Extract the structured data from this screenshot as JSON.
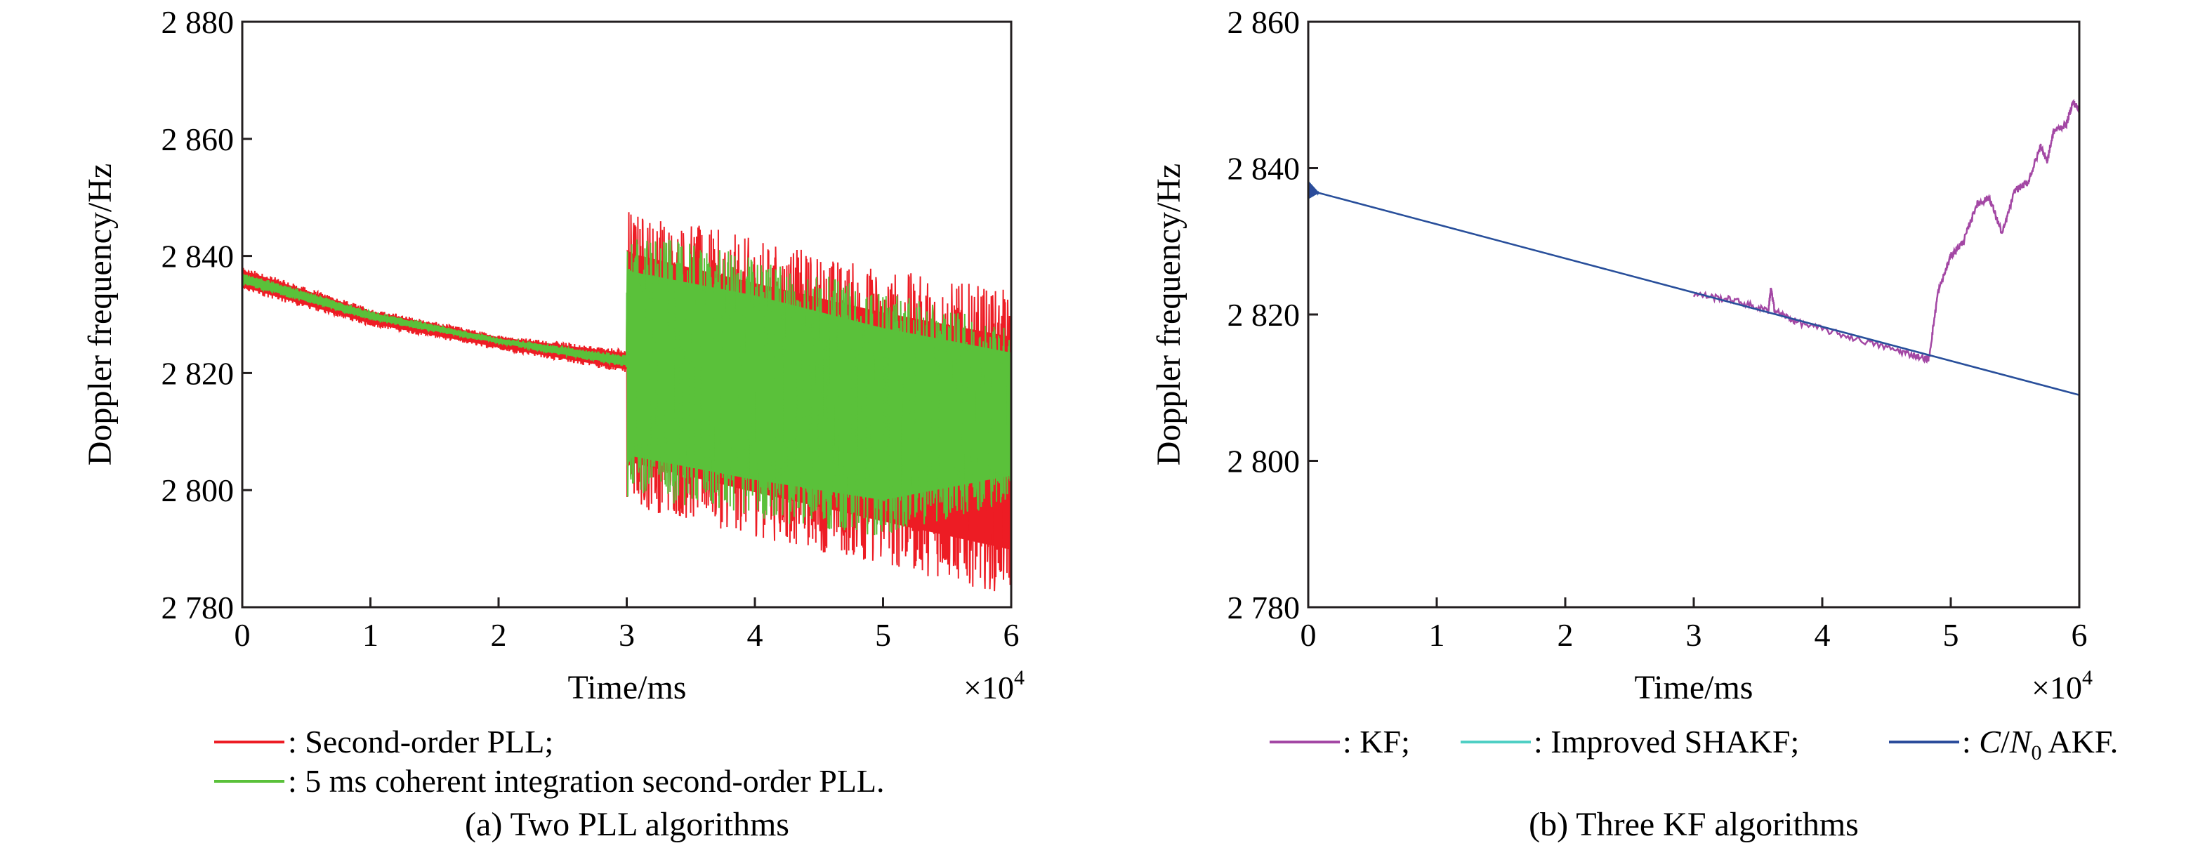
{
  "figure": {
    "panels": [
      {
        "caption": "(a) Two PLL algorithms",
        "xlabel": "Time/ms",
        "ylabel": "Doppler frequency/Hz",
        "x_multiplier": "×10",
        "x_multiplier_exp": "4",
        "legend": [
          {
            "label": ": Second-order PLL;",
            "color": "#ed1c24"
          },
          {
            "label": ": 5 ms coherent integration second-order PLL.",
            "color": "#5ac13a"
          }
        ]
      },
      {
        "caption": "(b) Three KF algorithms",
        "xlabel": "Time/ms",
        "ylabel": "Doppler frequency/Hz",
        "x_multiplier": "×10",
        "x_multiplier_exp": "4",
        "legend": [
          {
            "label": ": KF;",
            "color": "#a347a4"
          },
          {
            "label": ": Improved SHAKF;",
            "color": "#4fcfc4"
          },
          {
            "label_pre": ": ",
            "label_C": "C",
            "label_slash": "/",
            "label_N": "N",
            "label_sub": "0",
            "label_post": " AKF.",
            "color": "#2b4c9b"
          }
        ]
      }
    ]
  },
  "chart_data": [
    {
      "type": "line",
      "title": "",
      "xlabel": "Time/ms",
      "ylabel": "Doppler frequency/Hz",
      "xlim": [
        0,
        60000
      ],
      "ylim": [
        2780,
        2880
      ],
      "xticks": [
        0,
        10000,
        20000,
        30000,
        40000,
        50000,
        60000
      ],
      "xtick_labels": [
        "0",
        "1",
        "2",
        "3",
        "4",
        "5",
        "6"
      ],
      "yticks": [
        2780,
        2800,
        2820,
        2840,
        2860,
        2880
      ],
      "ytick_labels": [
        "2 780",
        "2 800",
        "2 820",
        "2 840",
        "2 860",
        "2 880"
      ],
      "grid": false,
      "legend_position": "below",
      "series": [
        {
          "name": "Second-order PLL",
          "color": "#ed1c24",
          "x": [
            0,
            1000,
            10000,
            20000,
            29999,
            30000,
            30500,
            40000,
            50000,
            60000
          ],
          "upper": [
            2838,
            2837.5,
            2831,
            2826.5,
            2824,
            2849,
            2848,
            2843,
            2838,
            2834
          ],
          "lower": [
            2834,
            2833.5,
            2828,
            2824,
            2820,
            2796,
            2797,
            2792,
            2787,
            2782
          ]
        },
        {
          "name": "5 ms coherent integration second-order PLL",
          "color": "#5ac13a",
          "x": [
            0,
            1000,
            10000,
            20000,
            29999,
            30000,
            30500,
            40000,
            50000,
            60000
          ],
          "upper": [
            2837,
            2836.5,
            2830.5,
            2826,
            2823,
            2845,
            2844,
            2840,
            2834,
            2828
          ],
          "lower": [
            2835,
            2834.5,
            2829,
            2825,
            2821,
            2797,
            2799,
            2795,
            2792,
            2798
          ]
        }
      ]
    },
    {
      "type": "line",
      "title": "",
      "xlabel": "Time/ms",
      "ylabel": "Doppler frequency/Hz",
      "xlim": [
        0,
        60000
      ],
      "ylim": [
        2780,
        2860
      ],
      "xticks": [
        0,
        10000,
        20000,
        30000,
        40000,
        50000,
        60000
      ],
      "xtick_labels": [
        "0",
        "1",
        "2",
        "3",
        "4",
        "5",
        "6"
      ],
      "yticks": [
        2780,
        2800,
        2820,
        2840,
        2860
      ],
      "ytick_labels": [
        "2 780",
        "2 800",
        "2 820",
        "2 840",
        "2 860"
      ],
      "grid": false,
      "legend_position": "below",
      "series": [
        {
          "name": "KF",
          "color": "#a347a4",
          "x": [
            30000,
            33000,
            35800,
            36000,
            36300,
            38000,
            42000,
            46000,
            48000,
            48300,
            49000,
            50000,
            51000,
            52000,
            53000,
            54000,
            55000,
            56000,
            57000,
            57500,
            58000,
            59000,
            59500,
            60000
          ],
          "y": [
            2822.8,
            2822,
            2820.5,
            2823.5,
            2820.5,
            2819,
            2817,
            2815,
            2814,
            2814,
            2823,
            2828,
            2830,
            2835,
            2836,
            2831,
            2837,
            2838,
            2843,
            2841,
            2845,
            2846,
            2849,
            2848
          ]
        },
        {
          "name": "Improved SHAKF",
          "color": "#4fcfc4",
          "x": [
            0,
            60000
          ],
          "y": [
            2837,
            2809
          ]
        },
        {
          "name": "C/N0 AKF",
          "color": "#2b4c9b",
          "x": [
            0,
            60000
          ],
          "y": [
            2837,
            2809
          ]
        }
      ]
    }
  ]
}
